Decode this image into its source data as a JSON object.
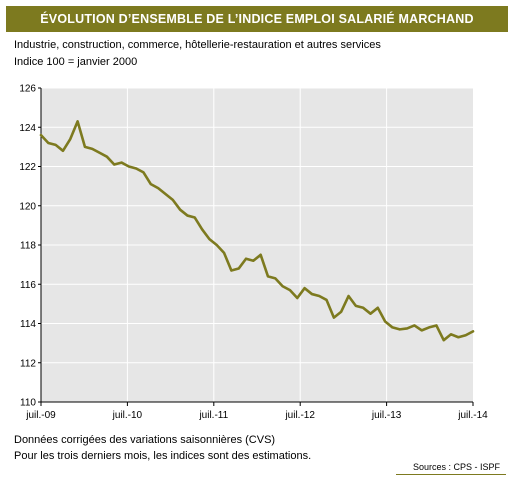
{
  "title": "ÉVOLUTION D’ENSEMBLE DE L’INDICE EMPLOI SALARIÉ MARCHAND",
  "subtitle_1": "Industrie, construction, commerce, hôtellerie-restauration et autres services",
  "subtitle_2": "Indice 100 = janvier 2000",
  "note_1": "Données corrigées des variations saisonnières (CVS)",
  "note_2": "Pour les trois derniers mois, les indices sont des estimations.",
  "source": "Sources : CPS - ISPF",
  "colors": {
    "accent": "#7d7a1f",
    "line": "#7d7a1f",
    "plot_bg": "#e6e6e6",
    "grid": "#ffffff"
  },
  "chart_data": {
    "type": "line",
    "title": "ÉVOLUTION D’ENSEMBLE DE L’INDICE EMPLOI SALARIÉ MARCHAND",
    "xlabel": "",
    "ylabel": "",
    "ylim": [
      110,
      126
    ],
    "yticks": [
      110,
      112,
      114,
      116,
      118,
      120,
      122,
      124,
      126
    ],
    "xlim": [
      0,
      60
    ],
    "xticks": [
      {
        "pos": 0,
        "label": "juil.-09"
      },
      {
        "pos": 12,
        "label": "juil.-10"
      },
      {
        "pos": 24,
        "label": "juil.-11"
      },
      {
        "pos": 36,
        "label": "juil.-12"
      },
      {
        "pos": 48,
        "label": "juil.-13"
      },
      {
        "pos": 60,
        "label": "juil.-14"
      }
    ],
    "grid": true,
    "legend": "none",
    "series": [
      {
        "values": [
          123.6,
          123.2,
          123.1,
          122.8,
          123.4,
          124.3,
          123.0,
          122.9,
          122.7,
          122.5,
          122.1,
          122.2,
          122.0,
          121.9,
          121.7,
          121.1,
          120.9,
          120.6,
          120.3,
          119.8,
          119.5,
          119.4,
          118.8,
          118.3,
          118.0,
          117.6,
          116.7,
          116.8,
          117.3,
          117.2,
          117.5,
          116.4,
          116.3,
          115.9,
          115.7,
          115.3,
          115.8,
          115.5,
          115.4,
          115.2,
          114.3,
          114.6,
          115.4,
          114.9,
          114.8,
          114.5,
          114.8,
          114.1,
          113.8,
          113.7,
          113.75,
          113.9,
          113.65,
          113.8,
          113.9,
          113.15,
          113.45,
          113.3,
          113.4,
          113.6
        ]
      }
    ]
  }
}
